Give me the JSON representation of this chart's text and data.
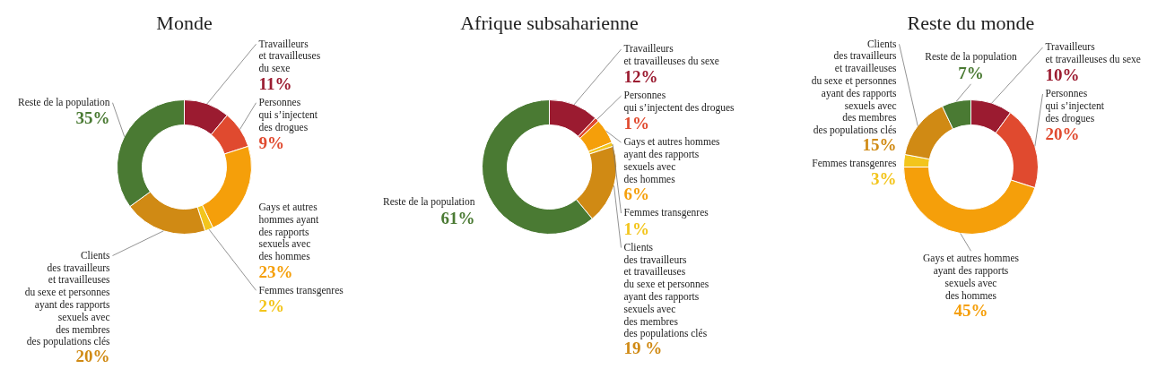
{
  "chart_data": [
    {
      "type": "donut",
      "title": "Monde",
      "categories": [
        "Travailleurs\net travailleuses\ndu sexe",
        "Personnes\nqui s’injectent\ndes drogues",
        "Gays et autres\nhommes ayant\ndes rapports\nsexuels avec\ndes hommes",
        "Femmes transgenres",
        "Clients\ndes travailleurs\net travailleuses\ndu sexe et personnes\nayant des rapports\nsexuels avec\ndes membres\ndes populations clés",
        "Reste de la population"
      ],
      "values": [
        11,
        9,
        23,
        2,
        20,
        35
      ],
      "value_labels": [
        "11%",
        "9%",
        "23%",
        "2%",
        "20%",
        "35%"
      ],
      "colors": [
        "#9b1b30",
        "#e04a2f",
        "#f59f0a",
        "#f3c51c",
        "#d08a14",
        "#4a7a33"
      ]
    },
    {
      "type": "donut",
      "title": "Afrique subsaharienne",
      "categories": [
        "Travailleurs\net travailleuses du sexe",
        "Personnes\nqui s’injectent des drogues",
        "Gays et autres hommes\nayant des rapports\nsexuels avec\ndes hommes",
        "Femmes transgenres",
        "Clients\ndes travailleurs\net travailleuses\ndu sexe et personnes\nayant des rapports\nsexuels avec\ndes membres\ndes populations clés",
        "Reste de la population"
      ],
      "values": [
        12,
        1,
        6,
        1,
        19,
        61
      ],
      "value_labels": [
        "12%",
        "1%",
        "6%",
        "1%",
        "19 %",
        "61%"
      ],
      "colors": [
        "#9b1b30",
        "#e04a2f",
        "#f59f0a",
        "#f3c51c",
        "#d08a14",
        "#4a7a33"
      ]
    },
    {
      "type": "donut",
      "title": "Reste du monde",
      "categories": [
        "Travailleurs\net travailleuses du sexe",
        "Personnes\nqui s’injectent\ndes drogues",
        "Gays et autres hommes\nayant des rapports\nsexuels avec\ndes hommes",
        "Femmes transgenres",
        "Clients\ndes travailleurs\net travailleuses\ndu sexe et personnes\nayant des rapports\nsexuels avec\ndes membres\ndes populations clés",
        "Reste de la population"
      ],
      "values": [
        10,
        20,
        45,
        3,
        15,
        7
      ],
      "value_labels": [
        "10%",
        "20%",
        "45%",
        "3%",
        "15%",
        "7%"
      ],
      "colors": [
        "#9b1b30",
        "#e04a2f",
        "#f59f0a",
        "#f3c51c",
        "#d08a14",
        "#4a7a33"
      ]
    }
  ]
}
